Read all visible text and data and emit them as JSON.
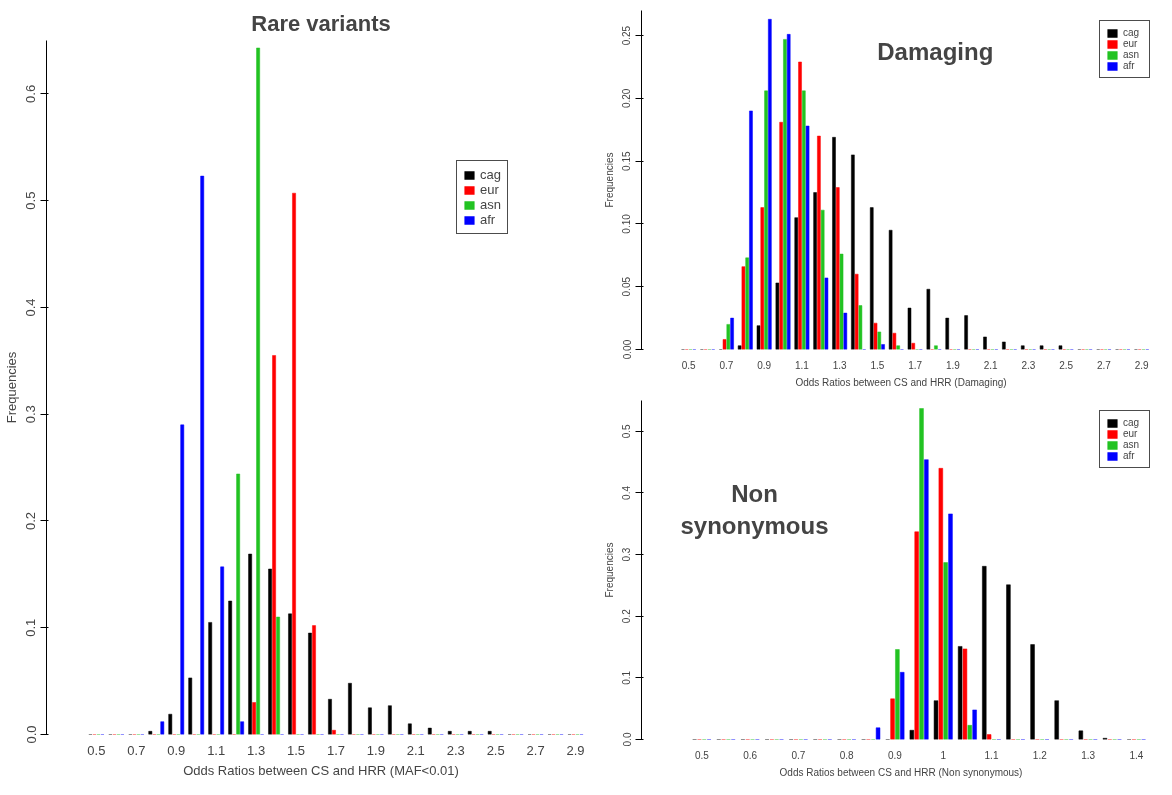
{
  "chart_data": [
    {
      "type": "bar",
      "title": "Rare variants",
      "xlabel": "Odds Ratios between CS and HRR (MAF<0.01)",
      "ylabel": "Frequencies",
      "categories": [
        "0.5",
        null,
        "0.7",
        null,
        "0.9",
        null,
        "1.1",
        null,
        "1.3",
        null,
        "1.5",
        null,
        "1.7",
        null,
        "1.9",
        null,
        "2.1",
        null,
        "2.3",
        null,
        "2.5",
        null,
        "2.7",
        null,
        "2.9"
      ],
      "series": [
        {
          "name": "cag",
          "color": "#000000",
          "values": [
            0,
            0,
            0,
            0.003,
            0.019,
            0.053,
            0.105,
            0.125,
            0.169,
            0.155,
            0.113,
            0.095,
            0.033,
            0.048,
            0.025,
            0.027,
            0.01,
            0.006,
            0.003,
            0.003,
            0.003,
            0,
            0,
            0,
            0
          ]
        },
        {
          "name": "eur",
          "color": "#ff0000",
          "values": [
            0,
            0,
            0,
            0,
            0,
            0,
            0,
            0,
            0.03,
            0.355,
            0.507,
            0.102,
            0.004,
            0,
            0,
            0,
            0,
            0,
            0,
            0,
            0,
            0,
            0,
            0,
            0
          ]
        },
        {
          "name": "asn",
          "color": "#22c322",
          "values": [
            0,
            0,
            0,
            0,
            0,
            0,
            0,
            0.244,
            0.643,
            0.11,
            0,
            0,
            0,
            0,
            0,
            0,
            0,
            0,
            0,
            0,
            0,
            0,
            0,
            0,
            0
          ]
        },
        {
          "name": "afr",
          "color": "#0000ff",
          "values": [
            0,
            0,
            0,
            0.012,
            0.29,
            0.523,
            0.157,
            0.012,
            0,
            0,
            0,
            0,
            0,
            0,
            0,
            0,
            0,
            0,
            0,
            0,
            0,
            0,
            0,
            0,
            0
          ]
        }
      ],
      "ylim": [
        0,
        0.65
      ],
      "yticks": [
        {
          "value": 0,
          "label": "0.0"
        },
        0.1,
        0.2,
        0.3,
        0.4,
        0.5,
        0.6
      ],
      "legend": "top right",
      "grid": false
    },
    {
      "type": "bar",
      "title": "Damaging",
      "xlabel": "Odds Ratios between CS and HRR (Damaging)",
      "ylabel": "Frequencies",
      "categories": [
        "0.5",
        null,
        "0.7",
        null,
        "0.9",
        null,
        "1.1",
        null,
        "1.3",
        null,
        "1.5",
        null,
        "1.7",
        null,
        "1.9",
        null,
        "2.1",
        null,
        "2.3",
        null,
        "2.5",
        null,
        "2.7",
        null,
        "2.9"
      ],
      "series": [
        {
          "name": "cag",
          "color": "#000000",
          "values": [
            0,
            0,
            0,
            0.003,
            0.019,
            0.053,
            0.105,
            0.125,
            0.169,
            0.155,
            0.113,
            0.095,
            0.033,
            0.048,
            0.025,
            0.027,
            0.01,
            0.006,
            0.003,
            0.003,
            0.003,
            0,
            0,
            0,
            0
          ]
        },
        {
          "name": "eur",
          "color": "#ff0000",
          "values": [
            0,
            0,
            0.008,
            0.066,
            0.113,
            0.181,
            0.229,
            0.17,
            0.129,
            0.06,
            0.021,
            0.013,
            0.005,
            0,
            0,
            0,
            0,
            0,
            0,
            0,
            0,
            0,
            0,
            0,
            0
          ]
        },
        {
          "name": "asn",
          "color": "#22c322",
          "values": [
            0,
            0,
            0.02,
            0.073,
            0.206,
            0.247,
            0.206,
            0.111,
            0.076,
            0.035,
            0.014,
            0.003,
            0,
            0.003,
            0,
            0,
            0,
            0,
            0,
            0,
            0,
            0,
            0,
            0,
            0
          ]
        },
        {
          "name": "afr",
          "color": "#0000ff",
          "values": [
            0,
            0,
            0.025,
            0.19,
            0.263,
            0.251,
            0.178,
            0.057,
            0.029,
            0,
            0.004,
            0,
            0,
            0,
            0,
            0,
            0,
            0,
            0,
            0,
            0,
            0,
            0,
            0,
            0
          ]
        }
      ],
      "ylim": [
        0,
        0.27
      ],
      "yticks": [
        {
          "value": 0,
          "label": "0.00"
        },
        {
          "value": 0.05,
          "label": "0.05"
        },
        {
          "value": 0.1,
          "label": "0.10"
        },
        0.15,
        {
          "value": 0.2,
          "label": "0.20"
        },
        0.25
      ],
      "legend": "top right",
      "grid": false
    },
    {
      "type": "bar",
      "title": "Non synonymous",
      "xlabel": "Odds Ratios between CS and HRR (Non synonymous)",
      "ylabel": "Frequencies",
      "categories": [
        "0.5",
        null,
        "0.6",
        null,
        "0.7",
        null,
        "0.8",
        null,
        "0.9",
        null,
        "1",
        null,
        "1.1",
        null,
        "1.2",
        null,
        "1.3",
        null,
        "1.4"
      ],
      "series": [
        {
          "name": "cag",
          "color": "#000000",
          "values": [
            0,
            0,
            0,
            0,
            0,
            0,
            0,
            0,
            0,
            0.015,
            0.063,
            0.151,
            0.281,
            0.251,
            0.154,
            0.063,
            0.014,
            0.002,
            0
          ]
        },
        {
          "name": "eur",
          "color": "#ff0000",
          "values": [
            0,
            0,
            0,
            0,
            0,
            0,
            0,
            0,
            0.066,
            0.337,
            0.44,
            0.147,
            0.008,
            0,
            0,
            0,
            0,
            0,
            0
          ]
        },
        {
          "name": "asn",
          "color": "#22c322",
          "values": [
            0,
            0,
            0,
            0,
            0,
            0,
            0,
            0,
            0.146,
            0.537,
            0.287,
            0.023,
            0,
            0,
            0,
            0,
            0,
            0,
            0
          ]
        },
        {
          "name": "afr",
          "color": "#0000ff",
          "values": [
            0,
            0,
            0,
            0,
            0,
            0,
            0,
            0.019,
            0.109,
            0.454,
            0.366,
            0.048,
            0,
            0,
            0,
            0,
            0,
            0,
            0
          ]
        }
      ],
      "ylim": [
        0,
        0.55
      ],
      "yticks": [
        {
          "value": 0,
          "label": "0.0"
        },
        0.1,
        0.2,
        0.3,
        0.4,
        0.5
      ],
      "legend": "top right",
      "grid": false
    }
  ]
}
